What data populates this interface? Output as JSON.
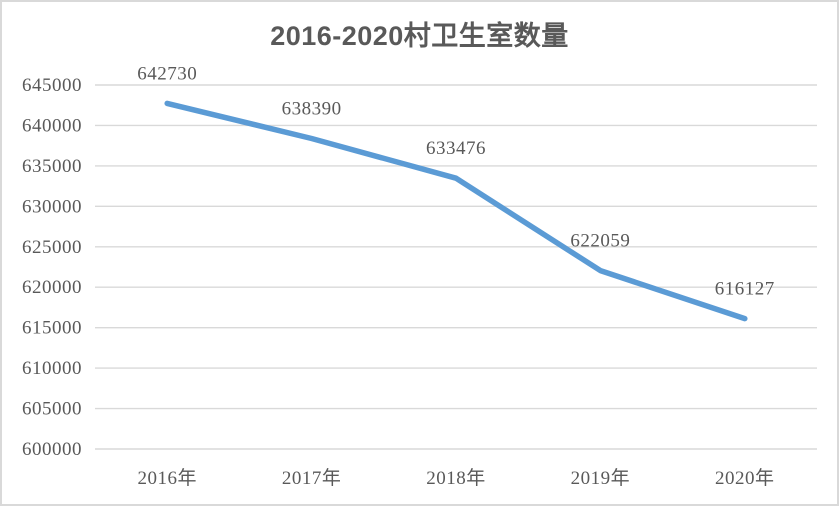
{
  "chart_data": {
    "type": "line",
    "title": "2016-2020村卫生室数量",
    "categories": [
      "2016年",
      "2017年",
      "2018年",
      "2019年",
      "2020年"
    ],
    "series": [
      {
        "name": "村卫生室数量",
        "values": [
          642730,
          638390,
          633476,
          622059,
          616127
        ]
      }
    ],
    "data_labels": [
      "642730",
      "638390",
      "633476",
      "622059",
      "616127"
    ],
    "xlabel": "",
    "ylabel": "",
    "ylim": [
      600000,
      645000
    ],
    "ytick_step": 5000,
    "ytick_labels": [
      "645000",
      "640000",
      "635000",
      "630000",
      "625000",
      "620000",
      "615000",
      "610000",
      "605000",
      "600000"
    ],
    "grid": true,
    "legend": "none",
    "colors": {
      "line": "#5b9bd5",
      "gridline": "#d9d9d9",
      "axis_text": "#595959",
      "title_text": "#595959",
      "frame_border": "#d9d9d9"
    }
  }
}
